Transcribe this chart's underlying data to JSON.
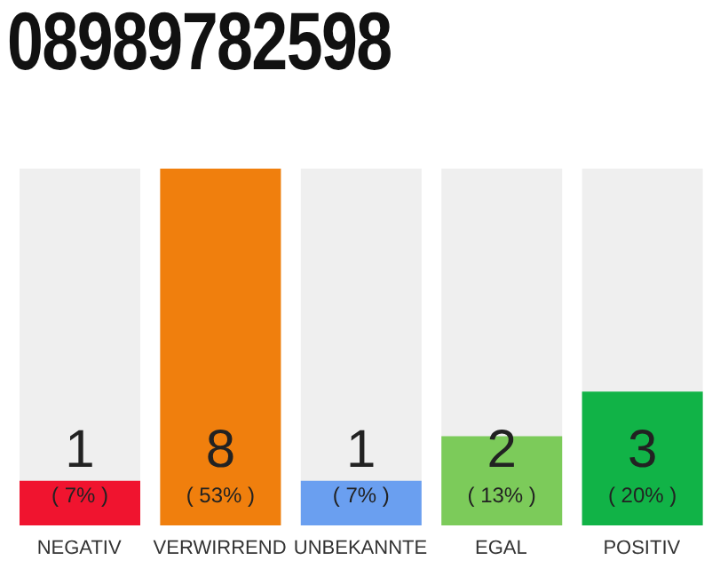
{
  "chart_data": {
    "type": "bar",
    "title": "08989782598",
    "categories": [
      "NEGATIV",
      "VERWIRREND",
      "UNBEKANNTE",
      "EGAL",
      "POSITIV"
    ],
    "values": [
      1,
      8,
      1,
      2,
      3
    ],
    "colors": [
      "#f0142f",
      "#f07f0d",
      "#6a9ff0",
      "#7ccb5a",
      "#11b347"
    ],
    "value_labels": [
      "1\n( 7% )",
      "8\n( 53% )",
      "1\n( 7% )",
      "2\n( 13% )",
      "3\n( 20% )"
    ],
    "grid": false,
    "legend": false
  }
}
